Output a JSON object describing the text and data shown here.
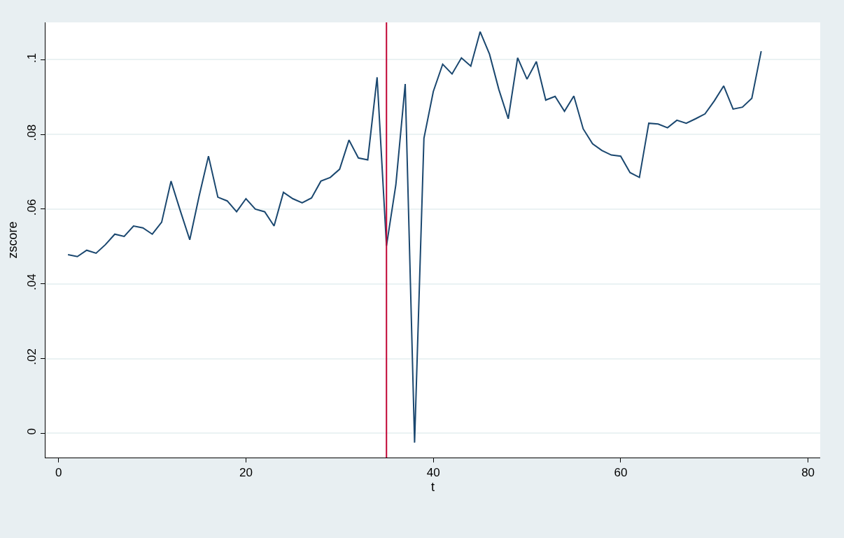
{
  "chart_data": {
    "type": "line",
    "xlabel": "t",
    "ylabel": "zscore",
    "x": [
      1,
      2,
      3,
      4,
      5,
      6,
      7,
      8,
      9,
      10,
      11,
      12,
      13,
      14,
      15,
      16,
      17,
      18,
      19,
      20,
      21,
      22,
      23,
      24,
      25,
      26,
      27,
      28,
      29,
      30,
      31,
      32,
      33,
      34,
      35,
      36,
      37,
      38,
      39,
      40,
      41,
      42,
      43,
      44,
      45,
      46,
      47,
      48,
      49,
      50,
      51,
      52,
      53,
      54,
      55,
      56,
      57,
      58,
      59,
      60,
      61,
      62,
      63,
      64,
      65,
      66,
      67,
      68,
      69,
      70,
      71,
      72,
      73,
      74,
      75
    ],
    "series": [
      {
        "color": "#1a476f",
        "values": [
          0.0478,
          0.0473,
          0.049,
          0.0482,
          0.0505,
          0.0533,
          0.0527,
          0.0555,
          0.055,
          0.0533,
          0.0565,
          0.0675,
          0.0595,
          0.0518,
          0.0635,
          0.0742,
          0.0632,
          0.0622,
          0.0593,
          0.0628,
          0.06,
          0.0593,
          0.0555,
          0.0645,
          0.0628,
          0.0617,
          0.063,
          0.0675,
          0.0685,
          0.0707,
          0.0785,
          0.0737,
          0.0732,
          0.0953,
          0.0502,
          0.0665,
          0.0935,
          -0.0025,
          0.079,
          0.0915,
          0.0988,
          0.0962,
          0.1005,
          0.0983,
          0.1075,
          0.1015,
          0.092,
          0.0842,
          0.1005,
          0.0948,
          0.0995,
          0.0892,
          0.0902,
          0.0862,
          0.0903,
          0.0815,
          0.0775,
          0.0757,
          0.0745,
          0.0742,
          0.0698,
          0.0685,
          0.083,
          0.0828,
          0.0818,
          0.0838,
          0.083,
          0.0842,
          0.0855,
          0.089,
          0.093,
          0.0868,
          0.0873,
          0.0897,
          0.1023
        ]
      }
    ],
    "xlim": [
      -1.4,
      81.3
    ],
    "ylim": [
      -0.0065,
      0.11
    ],
    "xticks": [
      0,
      20,
      40,
      60,
      80
    ],
    "yticks": [
      {
        "value": 0,
        "label": "0"
      },
      {
        "value": 0.02,
        "label": ".02"
      },
      {
        "value": 0.04,
        "label": ".04"
      },
      {
        "value": 0.06,
        "label": ".06"
      },
      {
        "value": 0.08,
        "label": ".08"
      },
      {
        "value": 0.1,
        "label": ".1"
      }
    ],
    "ref_lines": [
      {
        "axis": "x",
        "value": 35,
        "color": "#c10534"
      }
    ],
    "grid": "y",
    "marker": "none",
    "line_style": "solid"
  }
}
